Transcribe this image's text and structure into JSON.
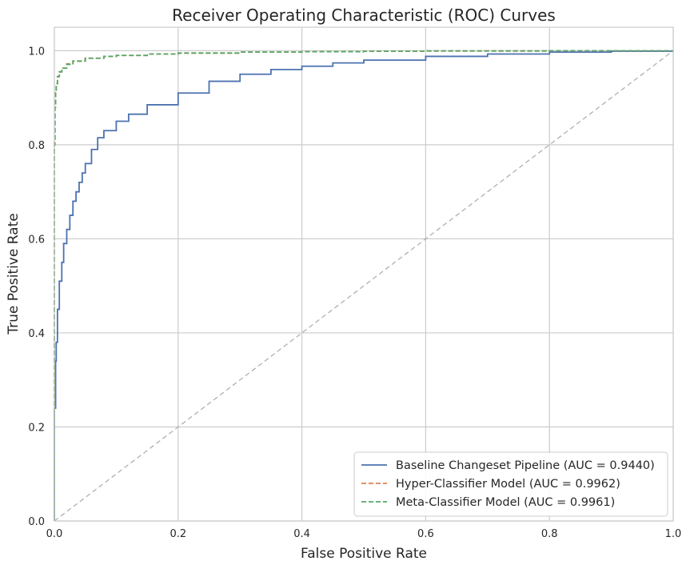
{
  "chart_data": {
    "type": "line",
    "title": "Receiver Operating Characteristic (ROC) Curves",
    "xlabel": "False Positive Rate",
    "ylabel": "True Positive Rate",
    "xlim": [
      0.0,
      1.0
    ],
    "ylim": [
      0.0,
      1.05
    ],
    "xticks": [
      0.0,
      0.2,
      0.4,
      0.6,
      0.8,
      1.0
    ],
    "yticks": [
      0.0,
      0.2,
      0.4,
      0.6,
      0.8,
      1.0
    ],
    "xtick_labels": [
      "0.0",
      "0.2",
      "0.4",
      "0.6",
      "0.8",
      "1.0"
    ],
    "ytick_labels": [
      "0.0",
      "0.2",
      "0.4",
      "0.6",
      "0.8",
      "1.0"
    ],
    "grid": true,
    "legend_position": "lower-right",
    "series": [
      {
        "name": "Baseline Changeset Pipeline (AUC = 0.9440)",
        "color": "#4c72b0",
        "dash": "solid",
        "x": [
          0.0,
          0.0,
          0.002,
          0.003,
          0.005,
          0.008,
          0.012,
          0.015,
          0.02,
          0.025,
          0.03,
          0.035,
          0.04,
          0.045,
          0.05,
          0.06,
          0.07,
          0.08,
          0.1,
          0.12,
          0.15,
          0.2,
          0.25,
          0.3,
          0.35,
          0.4,
          0.45,
          0.5,
          0.6,
          0.7,
          0.8,
          0.9,
          1.0
        ],
        "y": [
          0.0,
          0.24,
          0.34,
          0.38,
          0.45,
          0.51,
          0.55,
          0.59,
          0.62,
          0.65,
          0.68,
          0.7,
          0.72,
          0.74,
          0.76,
          0.79,
          0.815,
          0.83,
          0.85,
          0.865,
          0.885,
          0.91,
          0.935,
          0.95,
          0.96,
          0.967,
          0.974,
          0.98,
          0.988,
          0.993,
          0.997,
          0.999,
          1.0
        ]
      },
      {
        "name": "Hyper-Classifier Model (AUC = 0.9962)",
        "color": "#dd8452",
        "dash": "dashed",
        "x": [
          0.0,
          0.0,
          0.001,
          0.002,
          0.003,
          0.005,
          0.008,
          0.012,
          0.02,
          0.03,
          0.05,
          0.08,
          0.1,
          0.15,
          0.2,
          0.3,
          0.4,
          0.5,
          0.6,
          0.8,
          1.0
        ],
        "y": [
          0.0,
          0.81,
          0.88,
          0.91,
          0.93,
          0.945,
          0.955,
          0.963,
          0.972,
          0.978,
          0.984,
          0.988,
          0.99,
          0.993,
          0.995,
          0.997,
          0.998,
          0.999,
          0.9995,
          1.0,
          1.0
        ]
      },
      {
        "name": "Meta-Classifier Model (AUC = 0.9961)",
        "color": "#55a868",
        "dash": "dashed",
        "x": [
          0.0,
          0.0,
          0.001,
          0.002,
          0.003,
          0.005,
          0.008,
          0.012,
          0.02,
          0.03,
          0.05,
          0.08,
          0.1,
          0.15,
          0.2,
          0.3,
          0.4,
          0.5,
          0.6,
          0.8,
          1.0
        ],
        "y": [
          0.0,
          0.8,
          0.88,
          0.91,
          0.93,
          0.945,
          0.955,
          0.963,
          0.971,
          0.978,
          0.984,
          0.988,
          0.99,
          0.993,
          0.995,
          0.997,
          0.998,
          0.999,
          0.9995,
          1.0,
          1.0
        ]
      }
    ],
    "reference_line": {
      "x": [
        0.0,
        1.0
      ],
      "y": [
        0.0,
        1.0
      ],
      "color": "#b0b0b0",
      "dash": "dashed"
    },
    "colors": {
      "background": "#ffffff",
      "grid": "#cccccc",
      "axes_edge": "#cccccc",
      "text": "#262626",
      "legend_edge": "#cccccc"
    }
  }
}
